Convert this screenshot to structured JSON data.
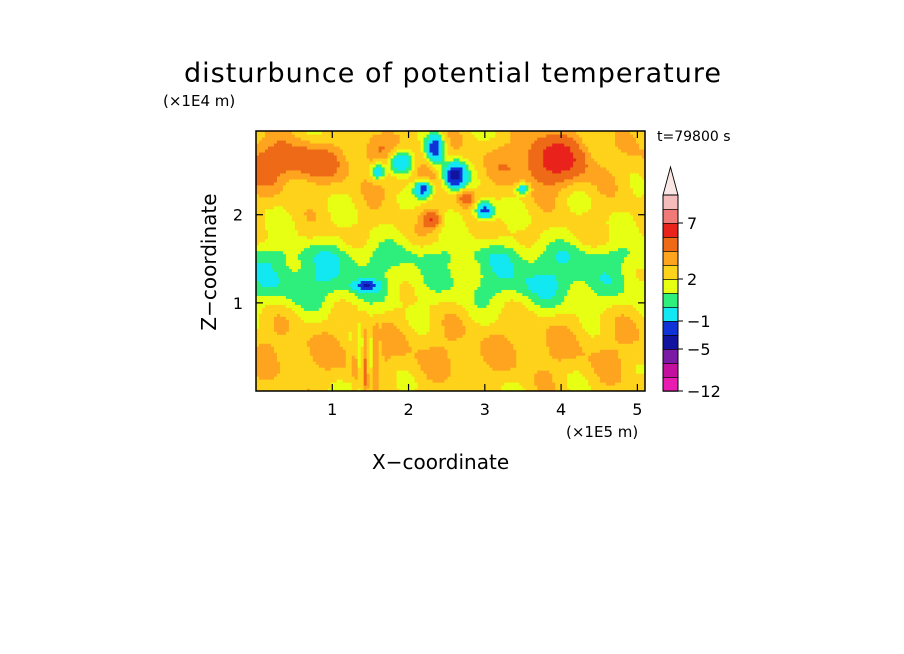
{
  "chart_data": {
    "type": "heatmap",
    "title": "disturbunce of potential temperature",
    "xlabel": "X−coordinate",
    "ylabel": "Z−coordinate",
    "x_unit": "(×1E5 m)",
    "y_unit": "(×1E4 m)",
    "annotation": "t=79800 s",
    "xlim": [
      0,
      5.1
    ],
    "ylim": [
      0,
      2.95
    ],
    "x_ticks": [
      "1",
      "2",
      "3",
      "4",
      "5"
    ],
    "y_ticks": [
      "1",
      "2"
    ],
    "colorbar": {
      "extend": "max",
      "labels": [
        "−12",
        "−5",
        "−1",
        "2",
        "7"
      ],
      "colors": [
        "#e81cb0",
        "#c3109e",
        "#7b1aa4",
        "#12139e",
        "#1033d8",
        "#12e8f2",
        "#2eee7c",
        "#e7ff12",
        "#ffd21b",
        "#ffa41f",
        "#ee6a17",
        "#e9221c",
        "#f07a78",
        "#f5bcbc",
        "#fbe6e6"
      ]
    },
    "field_description_levels": {
      "near_surface": "yellow to yellow-orange (about 0 to 2)",
      "z_0_9_to_1_6": "cyan and green bands (about -1 to 0)",
      "upper_left_and_right": "orange/red patches (about 2 to 7)",
      "x_2_to_3_z_2_2_to_2_8": "dark blue cells (about -5)"
    }
  }
}
